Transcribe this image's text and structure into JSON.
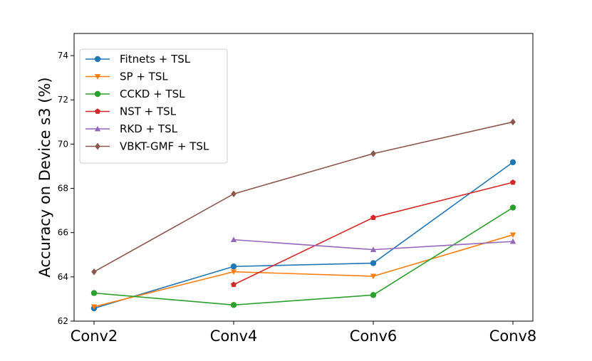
{
  "chart_data": {
    "type": "line",
    "title": "",
    "xlabel": "",
    "ylabel": "Accuracy on Device s3 (%)",
    "categories": [
      "Conv2",
      "Conv4",
      "Conv6",
      "Conv8"
    ],
    "ylim": [
      62,
      75
    ],
    "yticks": [
      62,
      64,
      66,
      68,
      70,
      72,
      74
    ],
    "legend_position": "upper-left",
    "series": [
      {
        "name": "Fitnets + TSL",
        "color": "#1f77b4",
        "marker": "circle",
        "values": [
          62.58,
          64.47,
          64.62,
          69.18
        ]
      },
      {
        "name": "SP + TSL",
        "color": "#ff7f0e",
        "marker": "triangle-down",
        "values": [
          62.65,
          64.23,
          64.03,
          65.9
        ]
      },
      {
        "name": "CCKD + TSL",
        "color": "#2ca02c",
        "marker": "circle",
        "values": [
          63.27,
          62.73,
          63.18,
          67.13
        ]
      },
      {
        "name": "NST + TSL",
        "color": "#d62728",
        "marker": "pentagon",
        "values": [
          null,
          63.65,
          66.68,
          68.27
        ]
      },
      {
        "name": "RKD + TSL",
        "color": "#9467bd",
        "marker": "triangle-up",
        "values": [
          null,
          65.68,
          65.23,
          65.6
        ]
      },
      {
        "name": "VBKT-GMF + TSL",
        "color": "#8c564b",
        "marker": "diamond",
        "values": [
          64.23,
          67.75,
          69.57,
          71.0
        ]
      }
    ]
  }
}
